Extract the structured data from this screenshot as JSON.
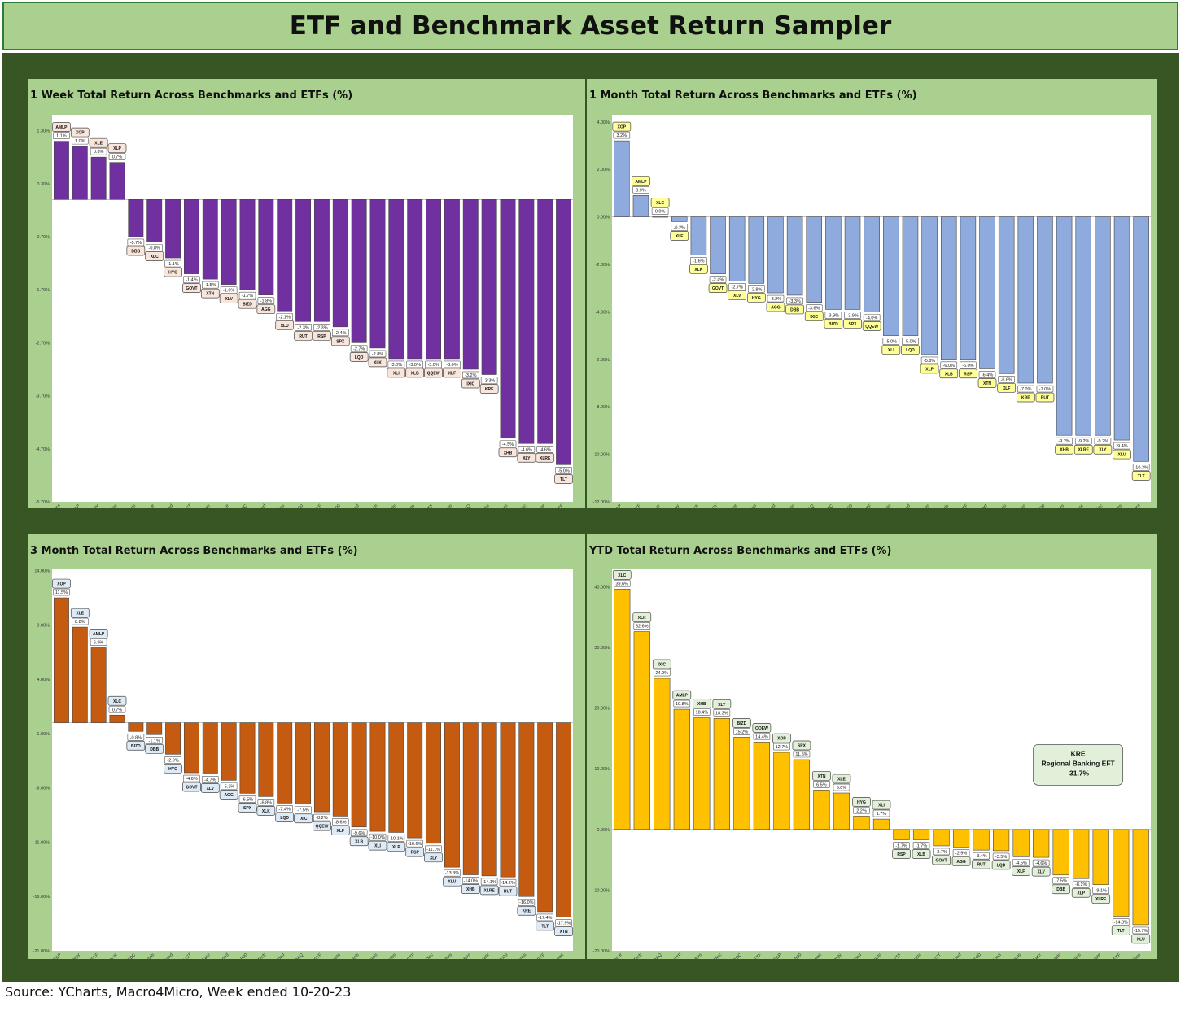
{
  "page": {
    "title": "ETF and Benchmark Asset Return Sampler",
    "source": "Source: YCharts, Macro4Micro, Week ended 10-20-23"
  },
  "chart_data": [
    {
      "type": "bar",
      "title": "1 Week Total Return Across Benchmarks and ETFs (%)",
      "color": "#7030a0",
      "box_fill": "#f8e5dc",
      "ylim": [
        -5.7,
        1.6
      ],
      "yticks": [
        1.3,
        0.3,
        -0.7,
        -1.7,
        -2.7,
        -3.7,
        -4.7,
        -5.7
      ],
      "tick_decimals": 2,
      "categories": [
        "MLP ETF",
        "E&P",
        "Energy",
        "Con Staples",
        "Base Metals",
        "Com Serve",
        "HY Bond",
        "UST",
        "Transport",
        "Health Care",
        "BDC",
        "Agg Bond",
        "Utilities",
        "Russell 2000",
        "S&P EW ETF",
        "S&P 500",
        "IG Bond",
        "Tech",
        "Industrials",
        "Materials",
        "NAS-EW ETF",
        "Financials",
        "NASDAQ",
        "Reg Banks",
        "Builders",
        "Con Disc",
        "Real Estate",
        "20+Yr UST ETF"
      ],
      "tickers": [
        "AMLP",
        "XOP",
        "XLE",
        "XLP",
        "DBB",
        "XLC",
        "HYG",
        "GOVT",
        "XTN",
        "XLV",
        "BIZD",
        "AGG",
        "XLU",
        "RUT",
        "RSP",
        "SPX",
        "LQD",
        "XLK",
        "XLI",
        "XLB",
        "QQEW",
        "XLF",
        "IXIC",
        "KRE",
        "XHB",
        "XLY",
        "XLRE",
        "TLT"
      ],
      "values": [
        1.1,
        1.0,
        0.8,
        0.7,
        -0.7,
        -0.8,
        -1.1,
        -1.4,
        -1.5,
        -1.6,
        -1.7,
        -1.8,
        -2.1,
        -2.3,
        -2.3,
        -2.4,
        -2.7,
        -2.8,
        -3.0,
        -3.0,
        -3.0,
        -3.0,
        -3.2,
        -3.3,
        -4.5,
        -4.6,
        -4.6,
        -5.0
      ]
    },
    {
      "type": "bar",
      "title": "1 Month Total Return Across Benchmarks and ETFs (%)",
      "color": "#8faadc",
      "box_fill": "#ffff99",
      "ylim": [
        -12,
        4.3
      ],
      "yticks": [
        4,
        2,
        0,
        -2,
        -4,
        -6,
        -8,
        -10,
        -12
      ],
      "tick_decimals": 2,
      "categories": [
        "E&P",
        "MLP ETF",
        "Com Serve",
        "Energy",
        "Tech",
        "UST",
        "Health Care",
        "HY Bond",
        "Agg Bond",
        "Base Metals",
        "NASDAQ",
        "BDC",
        "S&P 500",
        "NAS-EW ETF",
        "Industrials",
        "IG Bond",
        "Con Staples",
        "Materials",
        "S&P EW ETF",
        "Transport",
        "Financials",
        "Reg Banks",
        "Russell 2000",
        "Builders",
        "Real Estate",
        "Con Disc",
        "Utilities",
        "20+Yr UST ETF"
      ],
      "tickers": [
        "XOP",
        "AMLP",
        "XLC",
        "XLE",
        "XLK",
        "GOVT",
        "XLV",
        "HYG",
        "AGG",
        "DBB",
        "IXIC",
        "BIZD",
        "SPX",
        "QQEW",
        "XLI",
        "LQD",
        "XLP",
        "XLB",
        "RSP",
        "XTN",
        "XLF",
        "KRE",
        "RUT",
        "XHB",
        "XLRE",
        "XLY",
        "XLU",
        "TLT"
      ],
      "values": [
        3.2,
        0.9,
        0.0,
        -0.2,
        -1.6,
        -2.4,
        -2.7,
        -2.8,
        -3.2,
        -3.3,
        -3.6,
        -3.9,
        -3.9,
        -4.0,
        -5.0,
        -5.0,
        -5.8,
        -6.0,
        -6.0,
        -6.4,
        -6.6,
        -7.0,
        -7.0,
        -9.2,
        -9.2,
        -9.2,
        -9.4,
        -10.3
      ]
    },
    {
      "type": "bar",
      "title": "3 Month Total Return Across Benchmarks and ETFs (%)",
      "color": "#c55a11",
      "box_fill": "#deebf7",
      "ylim": [
        -21,
        14.2
      ],
      "yticks": [
        14,
        9,
        4,
        -1,
        -6,
        -11,
        -16,
        -21
      ],
      "tick_decimals": 2,
      "categories": [
        "E&P",
        "Energy",
        "MLP ETF",
        "Com Serve",
        "BDC",
        "Base Metals",
        "HY Bond",
        "UST",
        "Health Care",
        "Agg Bond",
        "S&P 500",
        "Tech",
        "IG Bond",
        "NASDAQ",
        "NAS-EW ETF",
        "Financials",
        "Materials",
        "Industrials",
        "Con Staples",
        "S&P EW ETF",
        "Con Disc",
        "Utilities",
        "Builders",
        "Real Estate",
        "Russell 2000",
        "Reg Banks",
        "20+Yr UST ETF",
        "Transport"
      ],
      "tickers": [
        "XOP",
        "XLE",
        "AMLP",
        "XLC",
        "BIZD",
        "DBB",
        "HYG",
        "GOVT",
        "XLV",
        "AGG",
        "SPX",
        "XLK",
        "LQD",
        "IXIC",
        "QQEW",
        "XLF",
        "XLB",
        "XLI",
        "XLP",
        "RSP",
        "XLY",
        "XLU",
        "XHB",
        "XLRE",
        "RUT",
        "KRE",
        "TLT",
        "XTN"
      ],
      "values": [
        11.5,
        8.8,
        6.9,
        0.7,
        -0.8,
        -1.1,
        -2.9,
        -4.6,
        -4.7,
        -5.3,
        -6.5,
        -6.8,
        -7.4,
        -7.5,
        -8.2,
        -8.6,
        -9.6,
        -10.0,
        -10.1,
        -10.6,
        -11.1,
        -13.3,
        -14.0,
        -14.1,
        -14.2,
        -16.0,
        -17.4,
        -17.9
      ]
    },
    {
      "type": "bar",
      "title": "YTD Total Return Across Benchmarks and ETFs (%)",
      "color": "#ffc000",
      "box_fill": "#e2f0d9",
      "ylim": [
        -20,
        43
      ],
      "yticks": [
        40,
        30,
        20,
        10,
        0,
        -10,
        -20
      ],
      "tick_decimals": 2,
      "categories": [
        "Com Serve",
        "Tech",
        "NASDAQ",
        "MLP ETF",
        "Builders",
        "Con Disc",
        "BDC",
        "NAS-EW ETF",
        "E&P",
        "S&P 500",
        "Transport",
        "Energy",
        "HY Bond",
        "Industrials",
        "S&P EW ETF",
        "Materials",
        "UST",
        "Agg Bond",
        "Russell 2000",
        "IG Bond",
        "Financials",
        "Health Care",
        "Base Metals",
        "Con Staples",
        "Real Estate",
        "20+Yr UST ETF",
        "Utilities"
      ],
      "tickers": [
        "XLC",
        "XLK",
        "IXIC",
        "AMLP",
        "XHB",
        "XLY",
        "BIZD",
        "QQEW",
        "XOP",
        "SPX",
        "XTN",
        "XLE",
        "HYG",
        "XLI",
        "RSP",
        "XLB",
        "GOVT",
        "AGG",
        "RUT",
        "LQD",
        "XLF",
        "XLV",
        "DBB",
        "XLP",
        "XLRE",
        "TLT",
        "XLU"
      ],
      "values": [
        39.6,
        32.6,
        24.9,
        19.8,
        18.4,
        18.3,
        15.2,
        14.4,
        12.7,
        11.5,
        6.5,
        6.0,
        2.2,
        1.7,
        -1.7,
        -1.7,
        -2.7,
        -2.9,
        -3.4,
        -3.5,
        -4.5,
        -4.6,
        -7.5,
        -8.1,
        -9.1,
        -14.3,
        -15.7
      ],
      "annotation": {
        "ticker": "KRE",
        "name": "Regional Banking EFT",
        "value": "-31.7%"
      }
    }
  ]
}
